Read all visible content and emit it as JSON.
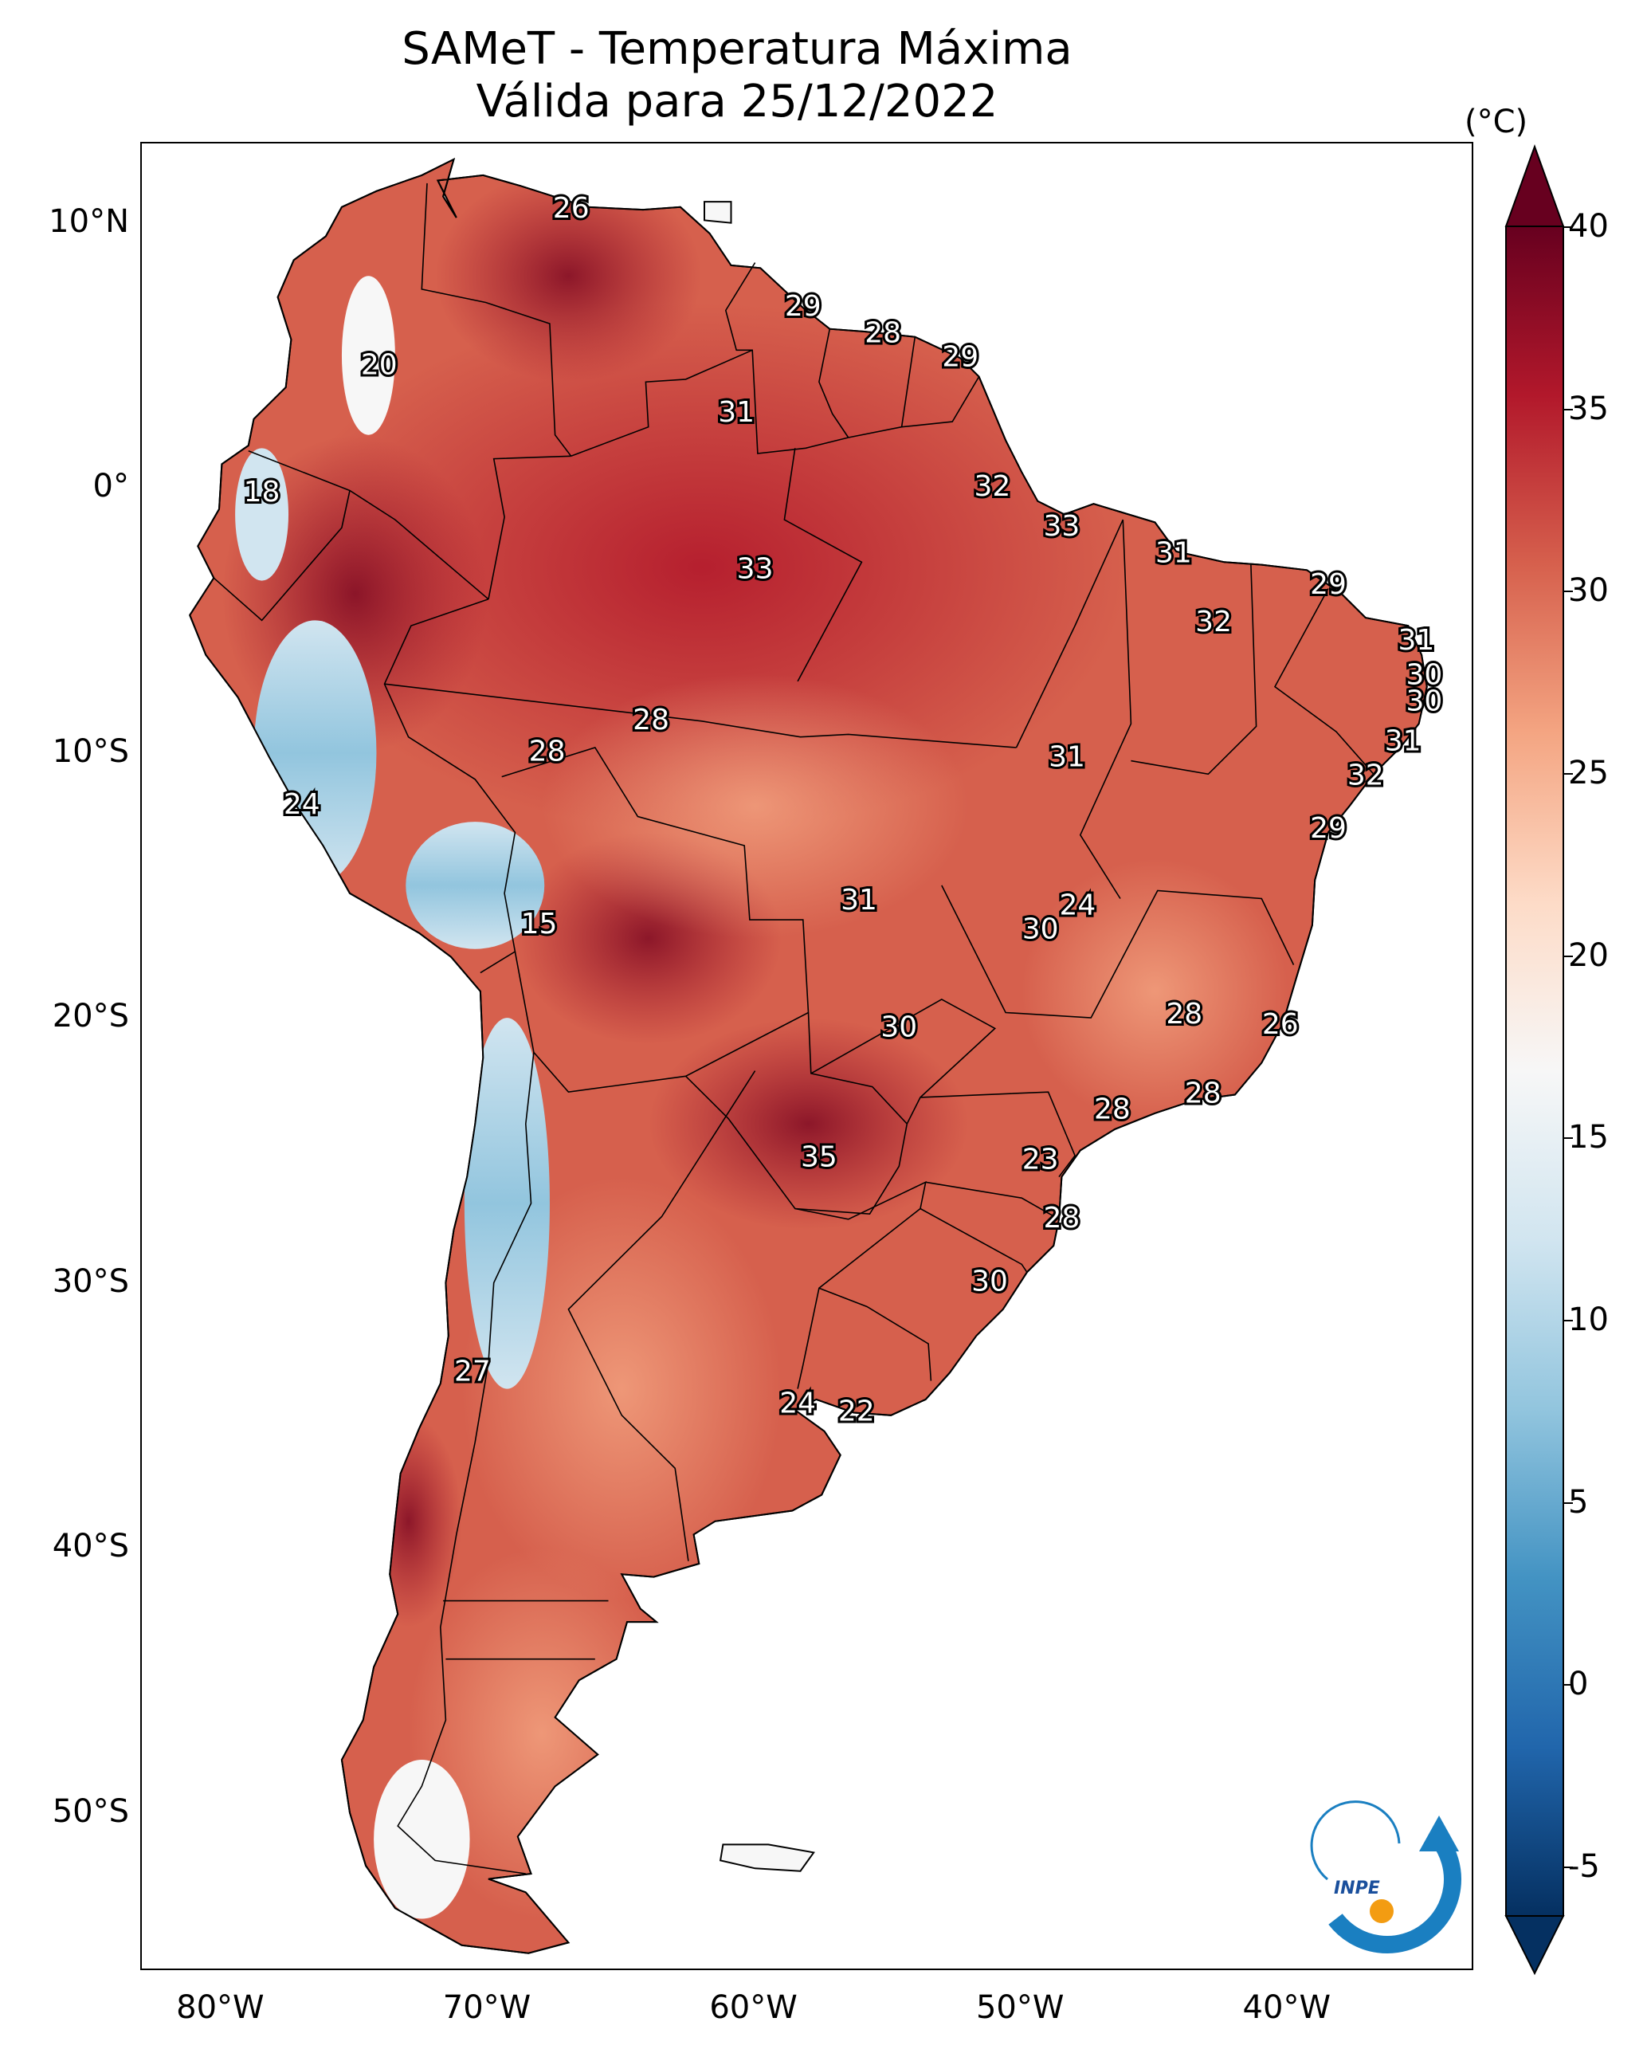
{
  "title": {
    "line1": "SAMeT - Temperatura Máxima",
    "line2": "Válida para 25/12/2022"
  },
  "map": {
    "extent": {
      "lon_min": -83,
      "lon_max": -33,
      "lat_min": -56,
      "lat_max": 13
    },
    "x_ticks": [
      {
        "lon": -80,
        "label": "80°W"
      },
      {
        "lon": -70,
        "label": "70°W"
      },
      {
        "lon": -60,
        "label": "60°W"
      },
      {
        "lon": -50,
        "label": "50°W"
      },
      {
        "lon": -40,
        "label": "40°W"
      }
    ],
    "y_ticks": [
      {
        "lat": 10,
        "label": "10°N"
      },
      {
        "lat": 0,
        "label": "0°"
      },
      {
        "lat": -10,
        "label": "10°S"
      },
      {
        "lat": -20,
        "label": "20°S"
      },
      {
        "lat": -30,
        "label": "30°S"
      },
      {
        "lat": -40,
        "label": "40°S"
      },
      {
        "lat": -50,
        "label": "50°S"
      }
    ],
    "capital_labels": [
      {
        "lon": -66.9,
        "lat": 10.5,
        "value": "26"
      },
      {
        "lon": -74.1,
        "lat": 4.6,
        "value": "20"
      },
      {
        "lon": -78.5,
        "lat": -0.2,
        "value": "18"
      },
      {
        "lon": -58.2,
        "lat": 6.8,
        "value": "29"
      },
      {
        "lon": -55.2,
        "lat": 5.8,
        "value": "28"
      },
      {
        "lon": -52.3,
        "lat": 4.9,
        "value": "29"
      },
      {
        "lon": -60.7,
        "lat": 2.8,
        "value": "31"
      },
      {
        "lon": -51.1,
        "lat": 0.0,
        "value": "32"
      },
      {
        "lon": -48.5,
        "lat": -1.5,
        "value": "33"
      },
      {
        "lon": -60.0,
        "lat": -3.1,
        "value": "33"
      },
      {
        "lon": -44.3,
        "lat": -2.5,
        "value": "31"
      },
      {
        "lon": -42.8,
        "lat": -5.1,
        "value": "32"
      },
      {
        "lon": -38.5,
        "lat": -3.7,
        "value": "29"
      },
      {
        "lon": -35.2,
        "lat": -5.8,
        "value": "31"
      },
      {
        "lon": -34.9,
        "lat": -7.1,
        "value": "30"
      },
      {
        "lon": -34.9,
        "lat": -8.1,
        "value": "30"
      },
      {
        "lon": -35.7,
        "lat": -9.6,
        "value": "31"
      },
      {
        "lon": -37.1,
        "lat": -10.9,
        "value": "32"
      },
      {
        "lon": -38.5,
        "lat": -12.9,
        "value": "29"
      },
      {
        "lon": -63.9,
        "lat": -8.8,
        "value": "28"
      },
      {
        "lon": -67.8,
        "lat": -10.0,
        "value": "28"
      },
      {
        "lon": -48.3,
        "lat": -10.2,
        "value": "31"
      },
      {
        "lon": -77.0,
        "lat": -12.0,
        "value": "24"
      },
      {
        "lon": -68.1,
        "lat": -16.5,
        "value": "15"
      },
      {
        "lon": -56.1,
        "lat": -15.6,
        "value": "31"
      },
      {
        "lon": -47.9,
        "lat": -15.8,
        "value": "24"
      },
      {
        "lon": -49.3,
        "lat": -16.7,
        "value": "30"
      },
      {
        "lon": -54.6,
        "lat": -20.4,
        "value": "30"
      },
      {
        "lon": -43.9,
        "lat": -19.9,
        "value": "28"
      },
      {
        "lon": -40.3,
        "lat": -20.3,
        "value": "26"
      },
      {
        "lon": -46.6,
        "lat": -23.5,
        "value": "28"
      },
      {
        "lon": -43.2,
        "lat": -22.9,
        "value": "28"
      },
      {
        "lon": -57.6,
        "lat": -25.3,
        "value": "35"
      },
      {
        "lon": -49.3,
        "lat": -25.4,
        "value": "23"
      },
      {
        "lon": -48.5,
        "lat": -27.6,
        "value": "28"
      },
      {
        "lon": -51.2,
        "lat": -30.0,
        "value": "30"
      },
      {
        "lon": -70.6,
        "lat": -33.4,
        "value": "27"
      },
      {
        "lon": -58.4,
        "lat": -34.6,
        "value": "24"
      },
      {
        "lon": -56.2,
        "lat": -34.9,
        "value": "22"
      }
    ]
  },
  "colorbar": {
    "unit": "(°C)",
    "min": -5,
    "max": 40,
    "ticks": [
      "40",
      "35",
      "30",
      "25",
      "20",
      "15",
      "10",
      "5",
      "0",
      "-5"
    ],
    "colors": [
      "#053061",
      "#2166ac",
      "#4393c3",
      "#92c5de",
      "#d1e5f0",
      "#f7f7f7",
      "#fddbc7",
      "#f4a582",
      "#d6604d",
      "#b2182b",
      "#67001f"
    ]
  },
  "logo": {
    "text": "INPE"
  }
}
